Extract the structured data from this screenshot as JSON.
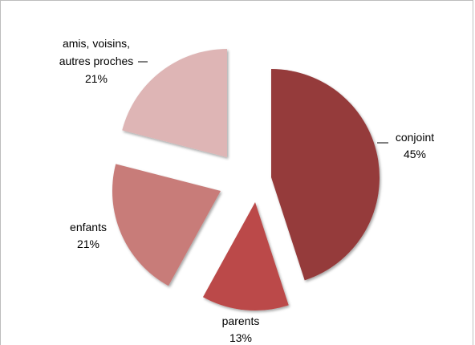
{
  "chart_data": {
    "type": "pie",
    "exploded": true,
    "title": "",
    "legend": "none",
    "slices": [
      {
        "label": "conjoint",
        "percent_label": "45%",
        "value": 45,
        "color": "#953a3b"
      },
      {
        "label": "parents",
        "percent_label": "13%",
        "value": 13,
        "color": "#bb4a48"
      },
      {
        "label": "enfants",
        "percent_label": "21%",
        "value": 21,
        "color": "#c87b79"
      },
      {
        "label": "amis, voisins,",
        "label_line2": "autres proches",
        "percent_label": "21%",
        "value": 21,
        "color": "#deb5b5"
      }
    ]
  }
}
